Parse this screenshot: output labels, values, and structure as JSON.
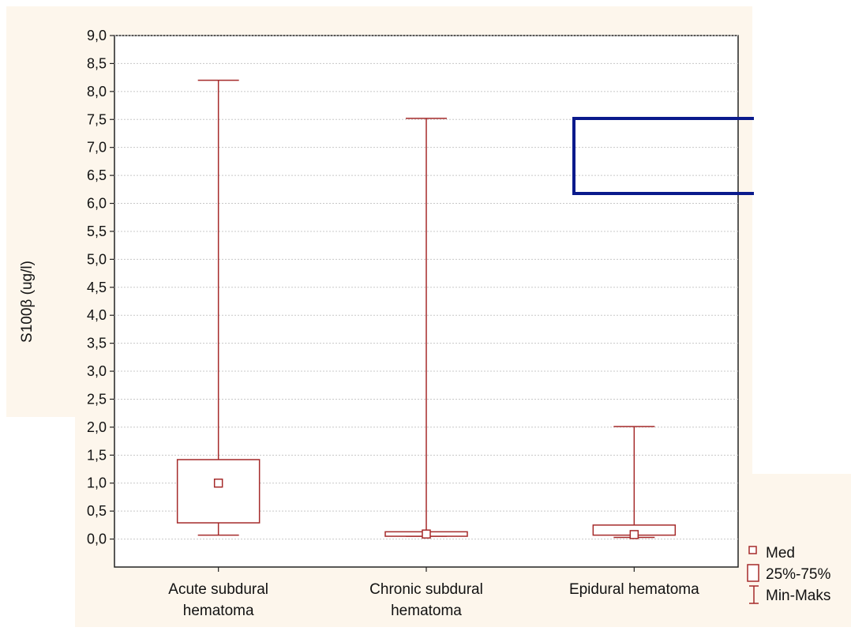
{
  "chart_data": {
    "type": "box",
    "ylabel": "S100β (ug/l)",
    "ylim": [
      -0.5,
      9.0
    ],
    "y_ticks": [
      "9,0",
      "8,5",
      "8,0",
      "7,5",
      "7,0",
      "6,5",
      "6,0",
      "5,5",
      "5,0",
      "4,5",
      "4,0",
      "3,5",
      "3,0",
      "2,5",
      "2,0",
      "1,5",
      "1,0",
      "0,5",
      "0,0"
    ],
    "y_tick_values": [
      9.0,
      8.5,
      8.0,
      7.5,
      7.0,
      6.5,
      6.0,
      5.5,
      5.0,
      4.5,
      4.0,
      3.5,
      3.0,
      2.5,
      2.0,
      1.5,
      1.0,
      0.5,
      0.0
    ],
    "grid": true,
    "categories": [
      [
        "Acute subdural",
        "hematoma"
      ],
      [
        "Chronic subdural",
        "hematoma"
      ],
      [
        "Epidural hematoma"
      ]
    ],
    "boxes": [
      {
        "min": 0.07,
        "q1": 0.29,
        "median": 1.0,
        "q3": 1.42,
        "max": 8.2
      },
      {
        "min": 0.05,
        "q1": 0.05,
        "median": 0.09,
        "q3": 0.13,
        "max": 7.52
      },
      {
        "min": 0.03,
        "q1": 0.07,
        "median": 0.08,
        "q3": 0.25,
        "max": 2.01
      }
    ],
    "legend": {
      "position": "bottom-right",
      "items": [
        "Med",
        "25%-75%",
        "Min-Maks"
      ]
    },
    "colors": {
      "box": "#a52a2a",
      "axis": "#222222",
      "grid": "#c8c8c8",
      "background_panel": "#fdf6ec",
      "overlay_rect": "#0a1a8c"
    }
  }
}
